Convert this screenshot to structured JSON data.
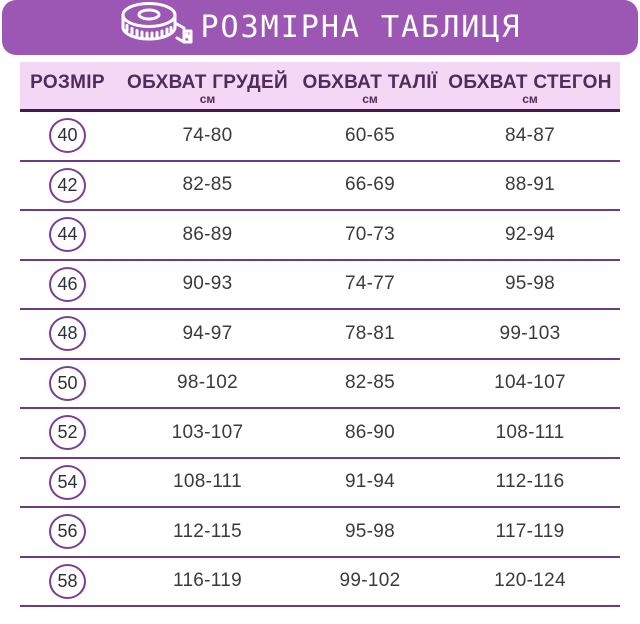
{
  "banner": {
    "title": "РОЗМІРНА ТАБЛИЦЯ",
    "icon": "measuring-tape-icon"
  },
  "colors": {
    "banner_bg": "#9c57b4",
    "header_bg": "#f4d7f4",
    "header_text": "#4f2c5a",
    "header_underline": "#44194f",
    "row_line": "#6e3a85",
    "circle_border": "#7b3e94",
    "value_text": "#3b3b3b"
  },
  "chart_data": {
    "type": "table",
    "title": "РОЗМІРНА ТАБЛИЦЯ",
    "columns": [
      {
        "label": "РОЗМІР",
        "unit": ""
      },
      {
        "label": "ОБХВАТ ГРУДЕЙ",
        "unit": "см"
      },
      {
        "label": "ОБХВАТ ТАЛІЇ",
        "unit": "см"
      },
      {
        "label": "ОБХВАТ СТЕГОН",
        "unit": "см"
      }
    ],
    "rows": [
      {
        "size": "40",
        "chest": "74-80",
        "waist": "60-65",
        "hips": "84-87"
      },
      {
        "size": "42",
        "chest": "82-85",
        "waist": "66-69",
        "hips": "88-91"
      },
      {
        "size": "44",
        "chest": "86-89",
        "waist": "70-73",
        "hips": "92-94"
      },
      {
        "size": "46",
        "chest": "90-93",
        "waist": "74-77",
        "hips": "95-98"
      },
      {
        "size": "48",
        "chest": "94-97",
        "waist": "78-81",
        "hips": "99-103"
      },
      {
        "size": "50",
        "chest": "98-102",
        "waist": "82-85",
        "hips": "104-107"
      },
      {
        "size": "52",
        "chest": "103-107",
        "waist": "86-90",
        "hips": "108-111"
      },
      {
        "size": "54",
        "chest": "108-111",
        "waist": "91-94",
        "hips": "112-116"
      },
      {
        "size": "56",
        "chest": "112-115",
        "waist": "95-98",
        "hips": "117-119"
      },
      {
        "size": "58",
        "chest": "116-119",
        "waist": "99-102",
        "hips": "120-124"
      }
    ]
  }
}
